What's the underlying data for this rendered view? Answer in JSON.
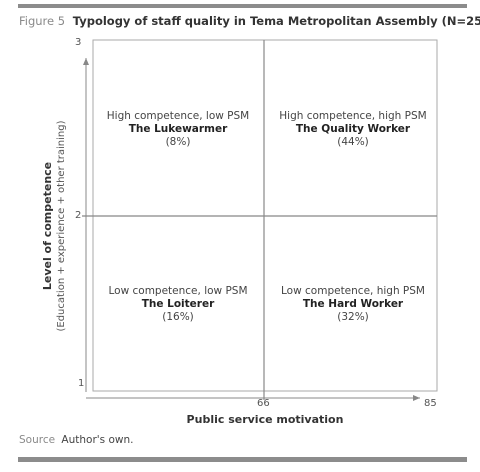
{
  "figure": {
    "label": "Figure 5",
    "title": "Typology of staff quality in Tema Metropolitan Assembly (N=25)"
  },
  "chart_data": {
    "type": "quadrant",
    "x_axis": {
      "label": "Public service motivation",
      "ticks": [
        "66",
        "85"
      ]
    },
    "y_axis": {
      "label": "Level of competence",
      "sublabel": "(Education + experience + other training)",
      "ticks": [
        "1",
        "2",
        "3"
      ]
    },
    "quadrants": [
      {
        "position": "top-left",
        "description": "High competence, low PSM",
        "name": "The Lukewarmer",
        "share": "(8%)"
      },
      {
        "position": "top-right",
        "description": "High competence, high PSM",
        "name": "The Quality Worker",
        "share": "(44%)"
      },
      {
        "position": "bottom-left",
        "description": "Low competence, low PSM",
        "name": "The Loiterer",
        "share": "(16%)"
      },
      {
        "position": "bottom-right",
        "description": "Low competence, high PSM",
        "name": "The Hard Worker",
        "share": "(32%)"
      }
    ]
  },
  "source": {
    "label": "Source",
    "text": "Author's own."
  }
}
